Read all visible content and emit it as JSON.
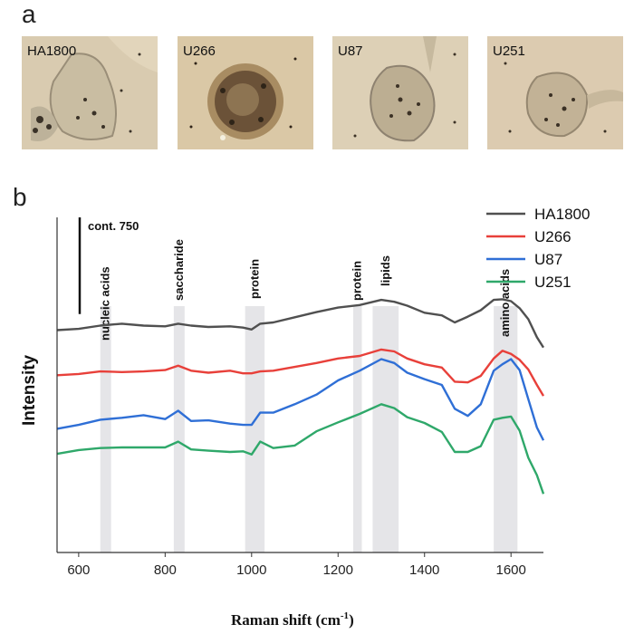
{
  "panel_a": {
    "letter": "a",
    "images": [
      {
        "label": "HA1800",
        "kind": "light-micrograph-cell"
      },
      {
        "label": "U266",
        "kind": "light-micrograph-cell"
      },
      {
        "label": "U87",
        "kind": "light-micrograph-cell"
      },
      {
        "label": "U251",
        "kind": "light-micrograph-cell"
      }
    ]
  },
  "panel_b": {
    "letter": "b"
  },
  "chart_data": {
    "type": "line",
    "xlabel": "Raman shift (cm",
    "xlabel_sup": "-1",
    "xlabel_close": ")",
    "ylabel": "Intensity",
    "xlim": [
      550,
      1675
    ],
    "xticks": [
      600,
      800,
      1000,
      1200,
      1400,
      1600
    ],
    "ylim": [
      0,
      2600
    ],
    "yticks_shown": false,
    "scale_bar": {
      "label": "cont. 750",
      "value": 750
    },
    "band_annotations": [
      {
        "label": "nucleic acids",
        "range": [
          650,
          675
        ]
      },
      {
        "label": "saccharide",
        "range": [
          820,
          845
        ]
      },
      {
        "label": "protein",
        "range": [
          985,
          1030
        ]
      },
      {
        "label": "protein",
        "range": [
          1235,
          1255
        ]
      },
      {
        "label": "lipids",
        "range": [
          1280,
          1340
        ]
      },
      {
        "label": "amino acids",
        "range": [
          1560,
          1615
        ]
      }
    ],
    "legend_position": "top-right",
    "x": [
      550,
      600,
      650,
      700,
      750,
      800,
      830,
      860,
      900,
      950,
      980,
      1000,
      1020,
      1050,
      1100,
      1150,
      1200,
      1250,
      1300,
      1330,
      1360,
      1400,
      1440,
      1470,
      1500,
      1530,
      1560,
      1580,
      1600,
      1620,
      1640,
      1660,
      1675
    ],
    "series": [
      {
        "name": "HA1800",
        "color": "#505050",
        "values": [
          1725,
          1735,
          1760,
          1775,
          1760,
          1755,
          1775,
          1760,
          1750,
          1755,
          1745,
          1730,
          1775,
          1785,
          1825,
          1865,
          1900,
          1920,
          1960,
          1945,
          1915,
          1860,
          1840,
          1785,
          1830,
          1880,
          1960,
          1965,
          1950,
          1895,
          1810,
          1670,
          1590
        ]
      },
      {
        "name": "U266",
        "color": "#e8403a",
        "values": [
          1375,
          1385,
          1405,
          1400,
          1405,
          1415,
          1450,
          1410,
          1395,
          1410,
          1390,
          1390,
          1405,
          1410,
          1440,
          1470,
          1505,
          1525,
          1575,
          1560,
          1505,
          1460,
          1435,
          1325,
          1320,
          1370,
          1505,
          1565,
          1540,
          1495,
          1420,
          1300,
          1215
        ]
      },
      {
        "name": "U87",
        "color": "#2f6fd6",
        "values": [
          960,
          990,
          1030,
          1045,
          1065,
          1035,
          1100,
          1020,
          1025,
          1000,
          990,
          990,
          1085,
          1085,
          1150,
          1225,
          1335,
          1410,
          1500,
          1470,
          1395,
          1345,
          1300,
          1115,
          1060,
          1150,
          1410,
          1460,
          1500,
          1415,
          1190,
          970,
          870
        ]
      },
      {
        "name": "U251",
        "color": "#2fa86a",
        "values": [
          765,
          795,
          810,
          815,
          815,
          815,
          860,
          800,
          790,
          780,
          785,
          760,
          860,
          810,
          830,
          940,
          1010,
          1075,
          1150,
          1120,
          1050,
          1005,
          935,
          780,
          780,
          825,
          1030,
          1045,
          1055,
          945,
          735,
          600,
          455
        ]
      }
    ]
  }
}
